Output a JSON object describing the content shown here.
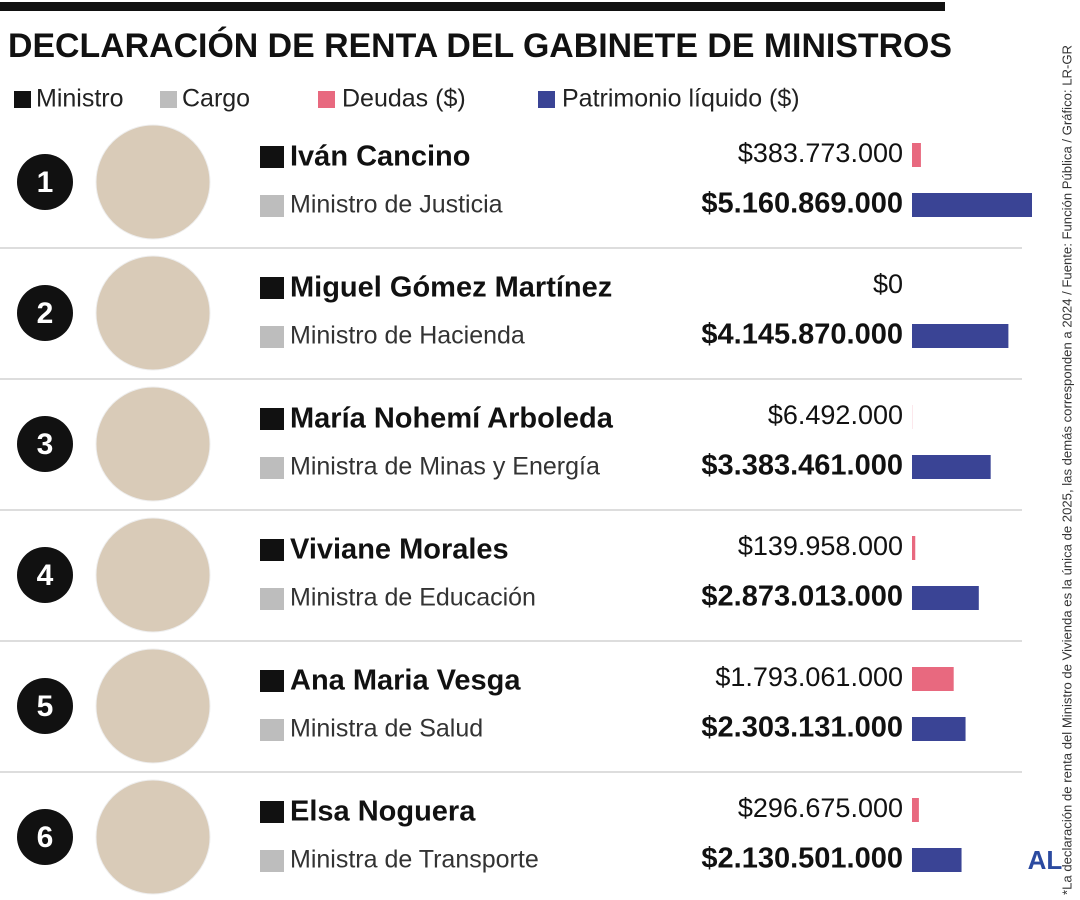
{
  "chart_data": {
    "type": "bar",
    "title": "DECLARACIÓN DE RENTA DEL GABINETE DE MINISTROS",
    "legend": [
      {
        "name": "Ministro",
        "color": "#111111"
      },
      {
        "name": "Cargo",
        "color": "#bdbdbd"
      }
    ],
    "ranks": [
      1,
      2,
      3,
      4,
      5,
      6
    ],
    "categories": [
      "Iván Cancino",
      "Miguel Gómez Martínez",
      "María Nohemí Arboleda",
      "Viviane Morales",
      "Ana Maria Vesga",
      "Elsa Noguera"
    ],
    "roles": [
      "Ministro de Justicia",
      "Ministro de Hacienda",
      "Ministra de Minas y Energía",
      "Ministra de Educación",
      "Ministra de Salud",
      "Ministra de Transporte"
    ],
    "series": [
      {
        "name": "Deudas ($)",
        "color": "#e8697f",
        "values": [
          383773000,
          0,
          6492000,
          139958000,
          1793061000,
          296675000
        ],
        "value_labels": [
          "$383.773.000",
          "$0",
          "$6.492.000",
          "$139.958.000",
          "$1.793.061.000",
          "$296.675.000"
        ]
      },
      {
        "name": "Patrimonio líquido ($)",
        "color": "#3a4495",
        "values": [
          5160869000,
          4145870000,
          3383461000,
          2873013000,
          2303131000,
          2130501000
        ],
        "value_labels": [
          "$5.160.869.000",
          "$4.145.870.000",
          "$3.383.461.000",
          "$2.873.013.000",
          "$2.303.131.000",
          "$2.130.501.000"
        ]
      }
    ],
    "note": "*La declaración de renta del Ministro de Vivienda es la única de 2025, las demás corresponden a 2024 / Fuente: Función Pública / Gráfico: LR-GR",
    "logo": "AL"
  }
}
